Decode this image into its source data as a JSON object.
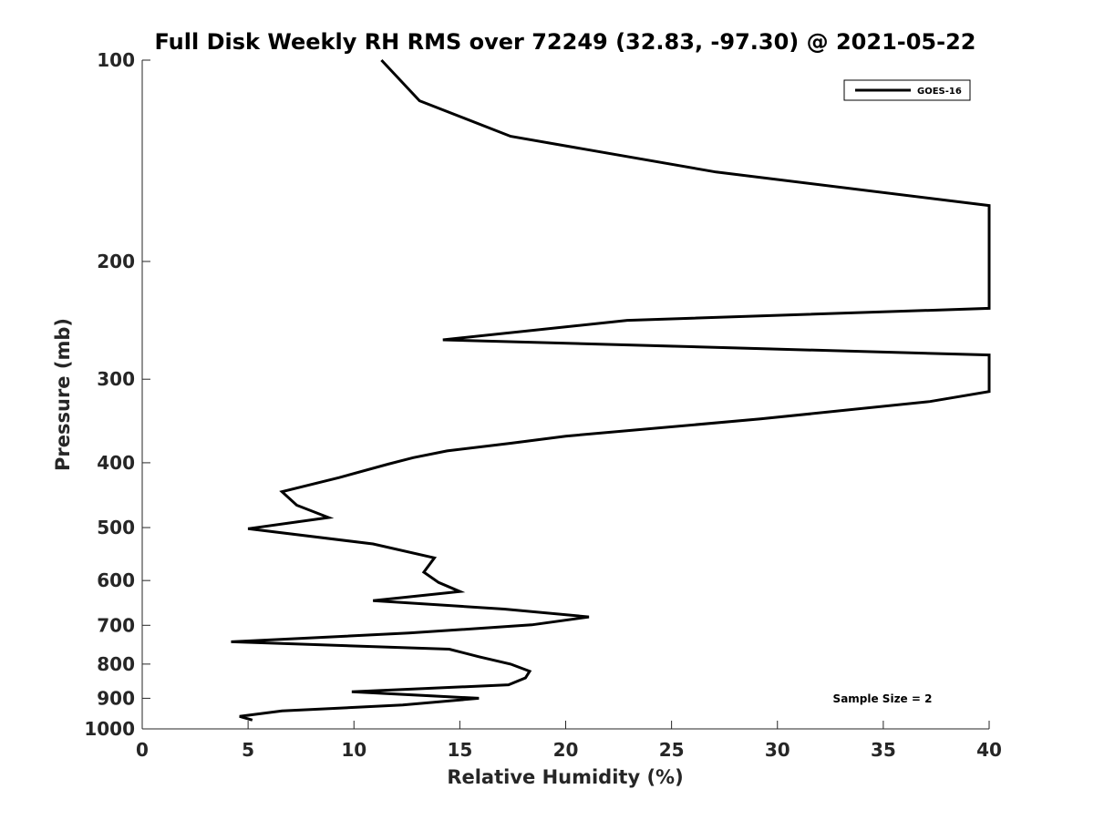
{
  "chart_data": {
    "type": "line",
    "title": "Full Disk Weekly RH RMS over 72249 (32.83, -97.30) @ 2021-05-22",
    "xlabel": "Relative Humidity (%)",
    "ylabel": "Pressure (mb)",
    "xlim": [
      0,
      40
    ],
    "ylim": [
      100,
      1000
    ],
    "yscale": "log",
    "y_reversed": true,
    "xticks": [
      0,
      5,
      10,
      15,
      20,
      25,
      30,
      35,
      40
    ],
    "yticks": [
      100,
      200,
      300,
      400,
      500,
      600,
      700,
      800,
      900,
      1000
    ],
    "grid": false,
    "legend_position": "top-right",
    "annotation": "Sample Size = 2",
    "series": [
      {
        "name": "GOES-16",
        "color": "#000000",
        "points": [
          [
            11.3,
            100
          ],
          [
            13.1,
            115
          ],
          [
            17.4,
            130
          ],
          [
            27.1,
            147
          ],
          [
            40.0,
            165
          ],
          [
            40.0,
            235
          ],
          [
            22.9,
            245
          ],
          [
            14.2,
            262
          ],
          [
            40.0,
            276
          ],
          [
            40.0,
            313
          ],
          [
            37.2,
            324
          ],
          [
            29.2,
            344
          ],
          [
            20.0,
            365
          ],
          [
            17.4,
            374
          ],
          [
            14.4,
            384
          ],
          [
            12.8,
            393
          ],
          [
            11.6,
            402
          ],
          [
            9.3,
            421
          ],
          [
            6.6,
            442
          ],
          [
            7.3,
            463
          ],
          [
            8.8,
            483
          ],
          [
            5.0,
            502
          ],
          [
            10.9,
            529
          ],
          [
            13.8,
            555
          ],
          [
            13.3,
            583
          ],
          [
            14.0,
            604
          ],
          [
            15.0,
            623
          ],
          [
            10.9,
            643
          ],
          [
            17.1,
            662
          ],
          [
            21.1,
            680
          ],
          [
            18.4,
            699
          ],
          [
            12.6,
            719
          ],
          [
            4.2,
            741
          ],
          [
            14.5,
            760
          ],
          [
            15.9,
            780
          ],
          [
            17.4,
            800
          ],
          [
            18.3,
            820
          ],
          [
            18.1,
            839
          ],
          [
            17.3,
            859
          ],
          [
            9.9,
            880
          ],
          [
            15.9,
            900
          ],
          [
            12.3,
            921
          ],
          [
            6.6,
            940
          ],
          [
            4.6,
            958
          ],
          [
            5.2,
            970
          ]
        ]
      }
    ]
  }
}
